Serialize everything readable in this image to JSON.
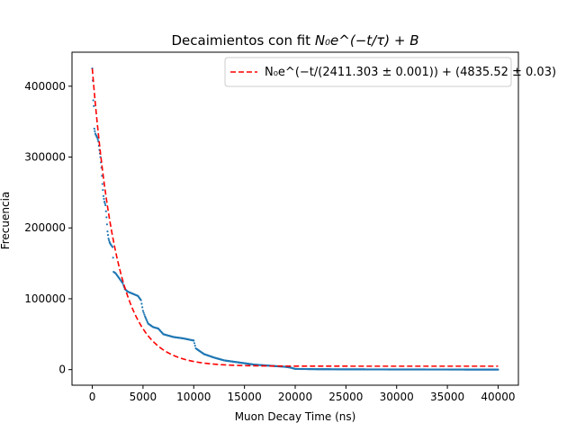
{
  "chart_data": {
    "type": "scatter",
    "title_text": "Decaimientos con fit ",
    "title_math": "N₀e^(−t/τ) + B",
    "xlabel": "Muon Decay Time (ns)",
    "ylabel": "Frecuencia",
    "xlim": [
      -2000,
      42000
    ],
    "ylim": [
      -22000,
      448000
    ],
    "xticks": [
      0,
      5000,
      10000,
      15000,
      20000,
      25000,
      30000,
      35000,
      40000
    ],
    "yticks": [
      0,
      100000,
      200000,
      300000,
      400000
    ],
    "grid": false,
    "legend_position": "top-right",
    "legend_label": "N₀e^(−t/(2411.303 ± 0.001)) + (4835.52 ± 0.03)",
    "colors": {
      "data": "#1f77b4",
      "fit": "#ff0000"
    },
    "fit": {
      "N0": 420000,
      "tau": 2411.303,
      "B": 4835.52,
      "x_range": [
        0,
        40000
      ]
    },
    "series": [
      {
        "points": [
          [
            0,
            425000
          ],
          [
            50,
            408000
          ],
          [
            100,
            380000
          ],
          [
            150,
            372000
          ],
          [
            200,
            340000
          ],
          [
            300,
            333000
          ],
          [
            400,
            330000
          ],
          [
            500,
            327000
          ],
          [
            600,
            322000
          ],
          [
            700,
            310000
          ],
          [
            800,
            300000
          ],
          [
            900,
            285000
          ],
          [
            1000,
            262000
          ],
          [
            1100,
            245000
          ],
          [
            1200,
            237000
          ],
          [
            1300,
            232000
          ],
          [
            1400,
            215000
          ],
          [
            1500,
            195000
          ],
          [
            1600,
            185000
          ],
          [
            1700,
            180000
          ],
          [
            1800,
            177000
          ],
          [
            2000,
            173000
          ],
          [
            2050,
            158000
          ],
          [
            2100,
            138000
          ],
          [
            2300,
            136000
          ],
          [
            2500,
            132000
          ],
          [
            2700,
            128000
          ],
          [
            3000,
            122000
          ],
          [
            3200,
            114000
          ],
          [
            3500,
            110000
          ],
          [
            4000,
            107000
          ],
          [
            4500,
            104000
          ],
          [
            4800,
            98000
          ],
          [
            5000,
            83000
          ],
          [
            5200,
            75000
          ],
          [
            5500,
            65000
          ],
          [
            6000,
            60000
          ],
          [
            6500,
            58000
          ],
          [
            7000,
            50000
          ],
          [
            8000,
            46000
          ],
          [
            9000,
            44000
          ],
          [
            10000,
            41000
          ],
          [
            10200,
            30000
          ],
          [
            11000,
            22000
          ],
          [
            12000,
            17000
          ],
          [
            13000,
            13000
          ],
          [
            14000,
            11000
          ],
          [
            15000,
            9000
          ],
          [
            16000,
            7000
          ],
          [
            17000,
            6000
          ],
          [
            18000,
            5000
          ],
          [
            19000,
            4000
          ],
          [
            19500,
            3000
          ],
          [
            20000,
            1000
          ],
          [
            22000,
            600
          ],
          [
            25000,
            400
          ],
          [
            28000,
            300
          ],
          [
            30000,
            250
          ],
          [
            32000,
            200
          ],
          [
            35000,
            150
          ],
          [
            38000,
            100
          ],
          [
            40000,
            100
          ]
        ]
      }
    ]
  }
}
